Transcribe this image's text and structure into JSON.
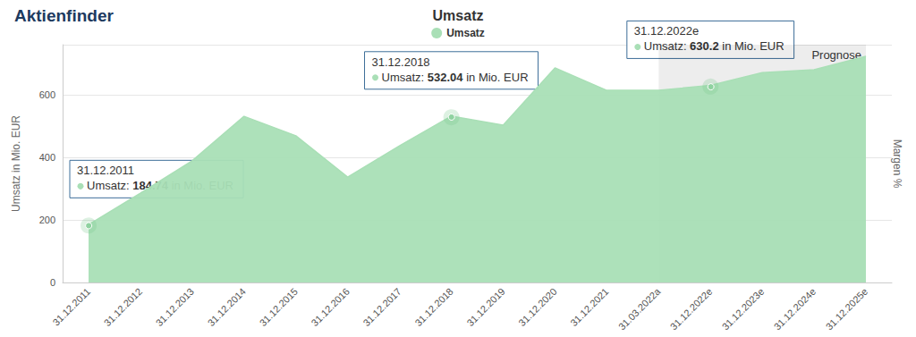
{
  "chart_data": {
    "type": "area",
    "title": "Umsatz",
    "logo": "Aktienfinder",
    "categories": [
      "31.12.2011",
      "31.12.2012",
      "31.12.2013",
      "31.12.2014",
      "31.12.2015",
      "31.12.2016",
      "31.12.2017",
      "31.12.2018",
      "31.12.2019",
      "31.12.2020",
      "31.12.2021",
      "31.03.2022a",
      "31.12.2022e",
      "31.12.2023e",
      "31.12.2024e",
      "31.12.2025e"
    ],
    "series": [
      {
        "name": "Umsatz",
        "color": "#a9dfb6",
        "values": [
          184.74,
          285,
          389,
          531,
          469,
          337,
          437,
          532.04,
          503,
          686,
          614,
          614,
          630.2,
          671,
          680,
          723
        ]
      }
    ],
    "ylim": [
      0,
      760
    ],
    "yticks": [
      0,
      200,
      400,
      600
    ],
    "y_label": "Umsatz in Mio. EUR",
    "y2_label": "Margen %",
    "grid": true,
    "legend": "top",
    "forecast": {
      "from": "31.03.2022a",
      "label": "Prognose"
    },
    "annotations": [
      {
        "category": "31.12.2011",
        "text": "Umsatz: 184.74 in Mio. EUR"
      },
      {
        "category": "31.12.2018",
        "text": "Umsatz: 532.04 in Mio. EUR"
      },
      {
        "category": "31.12.2022e",
        "text": "Umsatz: 630.2 in Mio. EUR"
      }
    ]
  }
}
